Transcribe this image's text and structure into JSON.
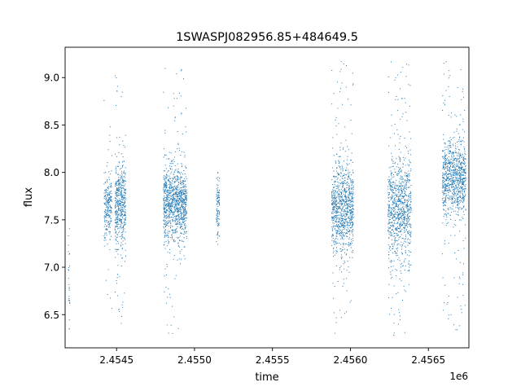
{
  "chart_data": {
    "type": "scatter",
    "title": "1SWASPJ082956.85+484649.5",
    "xlabel": "time",
    "ylabel": "flux",
    "x_offset_label": "1e6",
    "xlim": [
      2454170,
      2456760
    ],
    "ylim": [
      6.15,
      9.32
    ],
    "x_ticks": [
      2454500,
      2455000,
      2455500,
      2456000,
      2456500
    ],
    "x_tick_labels": [
      "2.4545",
      "2.4550",
      "2.4555",
      "2.4560",
      "2.4565"
    ],
    "y_ticks": [
      6.5,
      7.0,
      7.5,
      8.0,
      8.5,
      9.0
    ],
    "y_tick_labels": [
      "6.5",
      "7.0",
      "7.5",
      "8.0",
      "8.5",
      "9.0"
    ],
    "grid": false,
    "marker_color": "#1f77b4",
    "clusters": [
      {
        "x_start": 2454190,
        "x_end": 2454200,
        "y_center": 6.9,
        "y_spread": 0.35,
        "y_min": 6.35,
        "y_max": 7.5,
        "n": 25
      },
      {
        "x_start": 2454420,
        "x_end": 2454470,
        "y_center": 7.62,
        "y_spread": 0.16,
        "y_min": 6.4,
        "y_max": 9.1,
        "n": 240
      },
      {
        "x_start": 2454490,
        "x_end": 2454560,
        "y_center": 7.65,
        "y_spread": 0.22,
        "y_min": 6.35,
        "y_max": 9.1,
        "n": 520
      },
      {
        "x_start": 2454800,
        "x_end": 2454950,
        "y_center": 7.68,
        "y_spread": 0.2,
        "y_min": 6.3,
        "y_max": 9.12,
        "n": 1100
      },
      {
        "x_start": 2455140,
        "x_end": 2455160,
        "y_center": 7.65,
        "y_spread": 0.16,
        "y_min": 7.05,
        "y_max": 8.0,
        "n": 110
      },
      {
        "x_start": 2455880,
        "x_end": 2456020,
        "y_center": 7.62,
        "y_spread": 0.24,
        "y_min": 6.3,
        "y_max": 9.17,
        "n": 950
      },
      {
        "x_start": 2456240,
        "x_end": 2456390,
        "y_center": 7.6,
        "y_spread": 0.26,
        "y_min": 6.28,
        "y_max": 9.17,
        "n": 950
      },
      {
        "x_start": 2456590,
        "x_end": 2456740,
        "y_center": 7.95,
        "y_spread": 0.2,
        "y_min": 6.3,
        "y_max": 9.18,
        "n": 950
      }
    ]
  }
}
